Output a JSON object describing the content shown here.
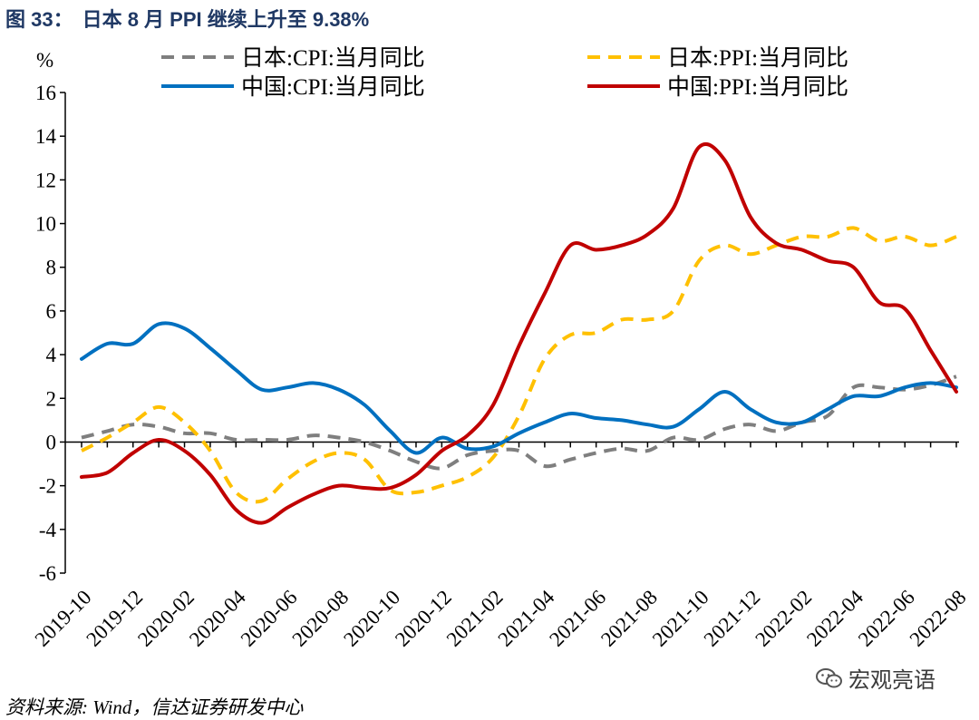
{
  "title": {
    "figure_no": "图 33：",
    "text": "日本 8 月 PPI 继续上升至 9.38%"
  },
  "source": "资料来源: Wind，信达证券研发中心",
  "watermark": "宏观亮语",
  "chart_data": {
    "type": "line",
    "ylabel": "%",
    "ylim": [
      -6,
      16
    ],
    "yticks": [
      -6,
      -4,
      -2,
      0,
      2,
      4,
      6,
      8,
      10,
      12,
      14,
      16
    ],
    "x": [
      "2019-10",
      "2019-11",
      "2019-12",
      "2020-01",
      "2020-02",
      "2020-03",
      "2020-04",
      "2020-05",
      "2020-06",
      "2020-07",
      "2020-08",
      "2020-09",
      "2020-10",
      "2020-11",
      "2020-12",
      "2021-01",
      "2021-02",
      "2021-03",
      "2021-04",
      "2021-05",
      "2021-06",
      "2021-07",
      "2021-08",
      "2021-09",
      "2021-10",
      "2021-11",
      "2021-12",
      "2022-01",
      "2022-02",
      "2022-03",
      "2022-04",
      "2022-05",
      "2022-06",
      "2022-07",
      "2022-08"
    ],
    "xtick_labels": [
      "2019-10",
      "2019-12",
      "2020-02",
      "2020-04",
      "2020-06",
      "2020-08",
      "2020-10",
      "2020-12",
      "2021-02",
      "2021-04",
      "2021-06",
      "2021-08",
      "2021-10",
      "2021-12",
      "2022-02",
      "2022-04",
      "2022-06",
      "2022-08"
    ],
    "legend_position": "top",
    "series": [
      {
        "name": "日本:CPI:当月同比",
        "color": "#7f7f7f",
        "style": "dashed",
        "values": [
          0.2,
          0.5,
          0.8,
          0.7,
          0.4,
          0.4,
          0.1,
          0.1,
          0.1,
          0.3,
          0.2,
          0.0,
          -0.4,
          -0.9,
          -1.2,
          -0.6,
          -0.4,
          -0.4,
          -1.1,
          -0.8,
          -0.5,
          -0.3,
          -0.4,
          0.2,
          0.1,
          0.6,
          0.8,
          0.5,
          0.9,
          1.2,
          2.5,
          2.5,
          2.4,
          2.6,
          3.0
        ]
      },
      {
        "name": "日本:PPI:当月同比",
        "color": "#ffc000",
        "style": "dashed",
        "values": [
          -0.4,
          0.2,
          0.9,
          1.6,
          0.9,
          -0.4,
          -2.3,
          -2.7,
          -1.7,
          -0.9,
          -0.5,
          -0.8,
          -2.2,
          -2.3,
          -2.0,
          -1.6,
          -0.7,
          1.2,
          3.8,
          4.9,
          5.0,
          5.6,
          5.6,
          6.0,
          8.3,
          9.0,
          8.6,
          9.0,
          9.4,
          9.4,
          9.8,
          9.2,
          9.4,
          9.0,
          9.4
        ]
      },
      {
        "name": "中国:CPI:当月同比",
        "color": "#0070c0",
        "style": "solid",
        "values": [
          3.8,
          4.5,
          4.5,
          5.4,
          5.2,
          4.3,
          3.3,
          2.4,
          2.5,
          2.7,
          2.4,
          1.7,
          0.5,
          -0.5,
          0.2,
          -0.3,
          -0.2,
          0.4,
          0.9,
          1.3,
          1.1,
          1.0,
          0.8,
          0.7,
          1.5,
          2.3,
          1.5,
          0.9,
          0.9,
          1.5,
          2.1,
          2.1,
          2.5,
          2.7,
          2.5
        ]
      },
      {
        "name": "中国:PPI:当月同比",
        "color": "#c00000",
        "style": "solid",
        "values": [
          -1.6,
          -1.4,
          -0.5,
          0.1,
          -0.4,
          -1.5,
          -3.1,
          -3.7,
          -3.0,
          -2.4,
          -2.0,
          -2.1,
          -2.1,
          -1.5,
          -0.4,
          0.3,
          1.7,
          4.4,
          6.8,
          9.0,
          8.8,
          9.0,
          9.5,
          10.7,
          13.5,
          12.9,
          10.3,
          9.1,
          8.8,
          8.3,
          8.0,
          6.4,
          6.1,
          4.2,
          2.3
        ]
      }
    ]
  }
}
